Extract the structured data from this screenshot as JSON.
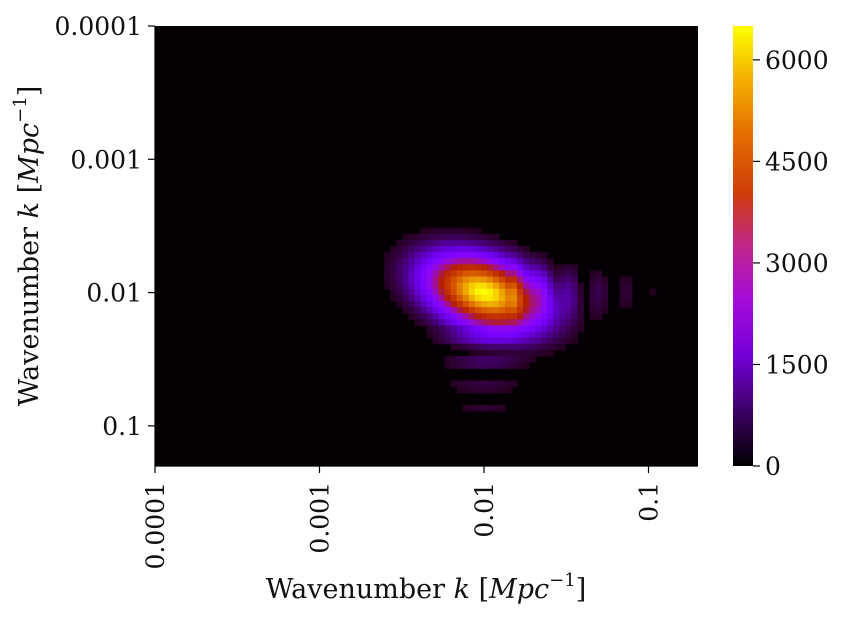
{
  "chart_data": {
    "type": "heatmap",
    "title": "",
    "x_axis": {
      "label_main": "Wavenumber ",
      "label_k": "k",
      "label_unit_open": " [",
      "label_unit": "Mpc",
      "label_exp": "−1",
      "label_unit_close": "]",
      "scale": "log",
      "range": [
        0.0001,
        0.2
      ],
      "ticks": [
        0.0001,
        0.001,
        0.01,
        0.1
      ],
      "tick_labels": [
        "0.0001",
        "0.001",
        "0.01",
        "0.1"
      ]
    },
    "y_axis": {
      "label_main": "Wavenumber ",
      "label_k": "k",
      "label_unit_open": " [",
      "label_unit": "Mpc",
      "label_exp": "−1",
      "label_unit_close": "]",
      "scale": "log",
      "inverted": true,
      "range": [
        0.0001,
        0.2
      ],
      "ticks": [
        0.0001,
        0.001,
        0.01,
        0.1
      ],
      "tick_labels": [
        "0.0001",
        "0.001",
        "0.01",
        "0.1"
      ]
    },
    "colorbar": {
      "colormap": "gnuplot",
      "range": [
        0,
        6500
      ],
      "ticks": [
        0,
        1500,
        3000,
        4500,
        6000
      ],
      "tick_labels": [
        "0",
        "1500",
        "3000",
        "4500",
        "6000"
      ]
    },
    "peak": {
      "kx": 0.01,
      "ky": 0.01,
      "value": 6500
    },
    "grid": false,
    "background_value": 0
  }
}
